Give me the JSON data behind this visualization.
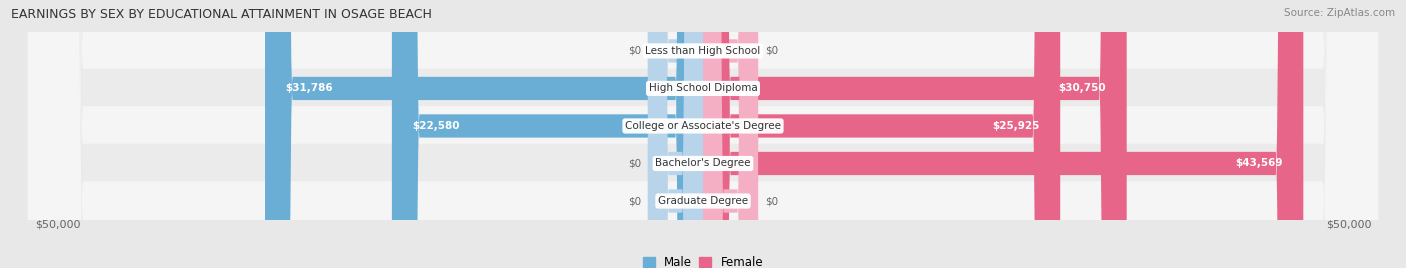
{
  "title": "EARNINGS BY SEX BY EDUCATIONAL ATTAINMENT IN OSAGE BEACH",
  "source": "Source: ZipAtlas.com",
  "categories": [
    "Less than High School",
    "High School Diploma",
    "College or Associate's Degree",
    "Bachelor's Degree",
    "Graduate Degree"
  ],
  "male_values": [
    0,
    31786,
    22580,
    0,
    0
  ],
  "female_values": [
    0,
    30750,
    25925,
    43569,
    0
  ],
  "male_labels": [
    "$0",
    "$31,786",
    "$22,580",
    "$0",
    "$0"
  ],
  "female_labels": [
    "$0",
    "$30,750",
    "$25,925",
    "$43,569",
    "$0"
  ],
  "max_value": 50000,
  "male_bar_color_strong": "#6aaed6",
  "male_bar_color_light": "#b8d4ea",
  "female_bar_color_strong": "#e8658a",
  "female_bar_color_light": "#f4afc4",
  "male_legend_color": "#6aaed6",
  "female_legend_color": "#e8658a",
  "bar_height": 0.62,
  "background_color": "#e8e8e8",
  "row_colors": [
    "#f5f5f5",
    "#ebebeb"
  ],
  "label_color_inside": "#ffffff",
  "label_color_outside": "#666666",
  "axis_label_left": "$50,000",
  "axis_label_right": "$50,000",
  "threshold": 3000
}
